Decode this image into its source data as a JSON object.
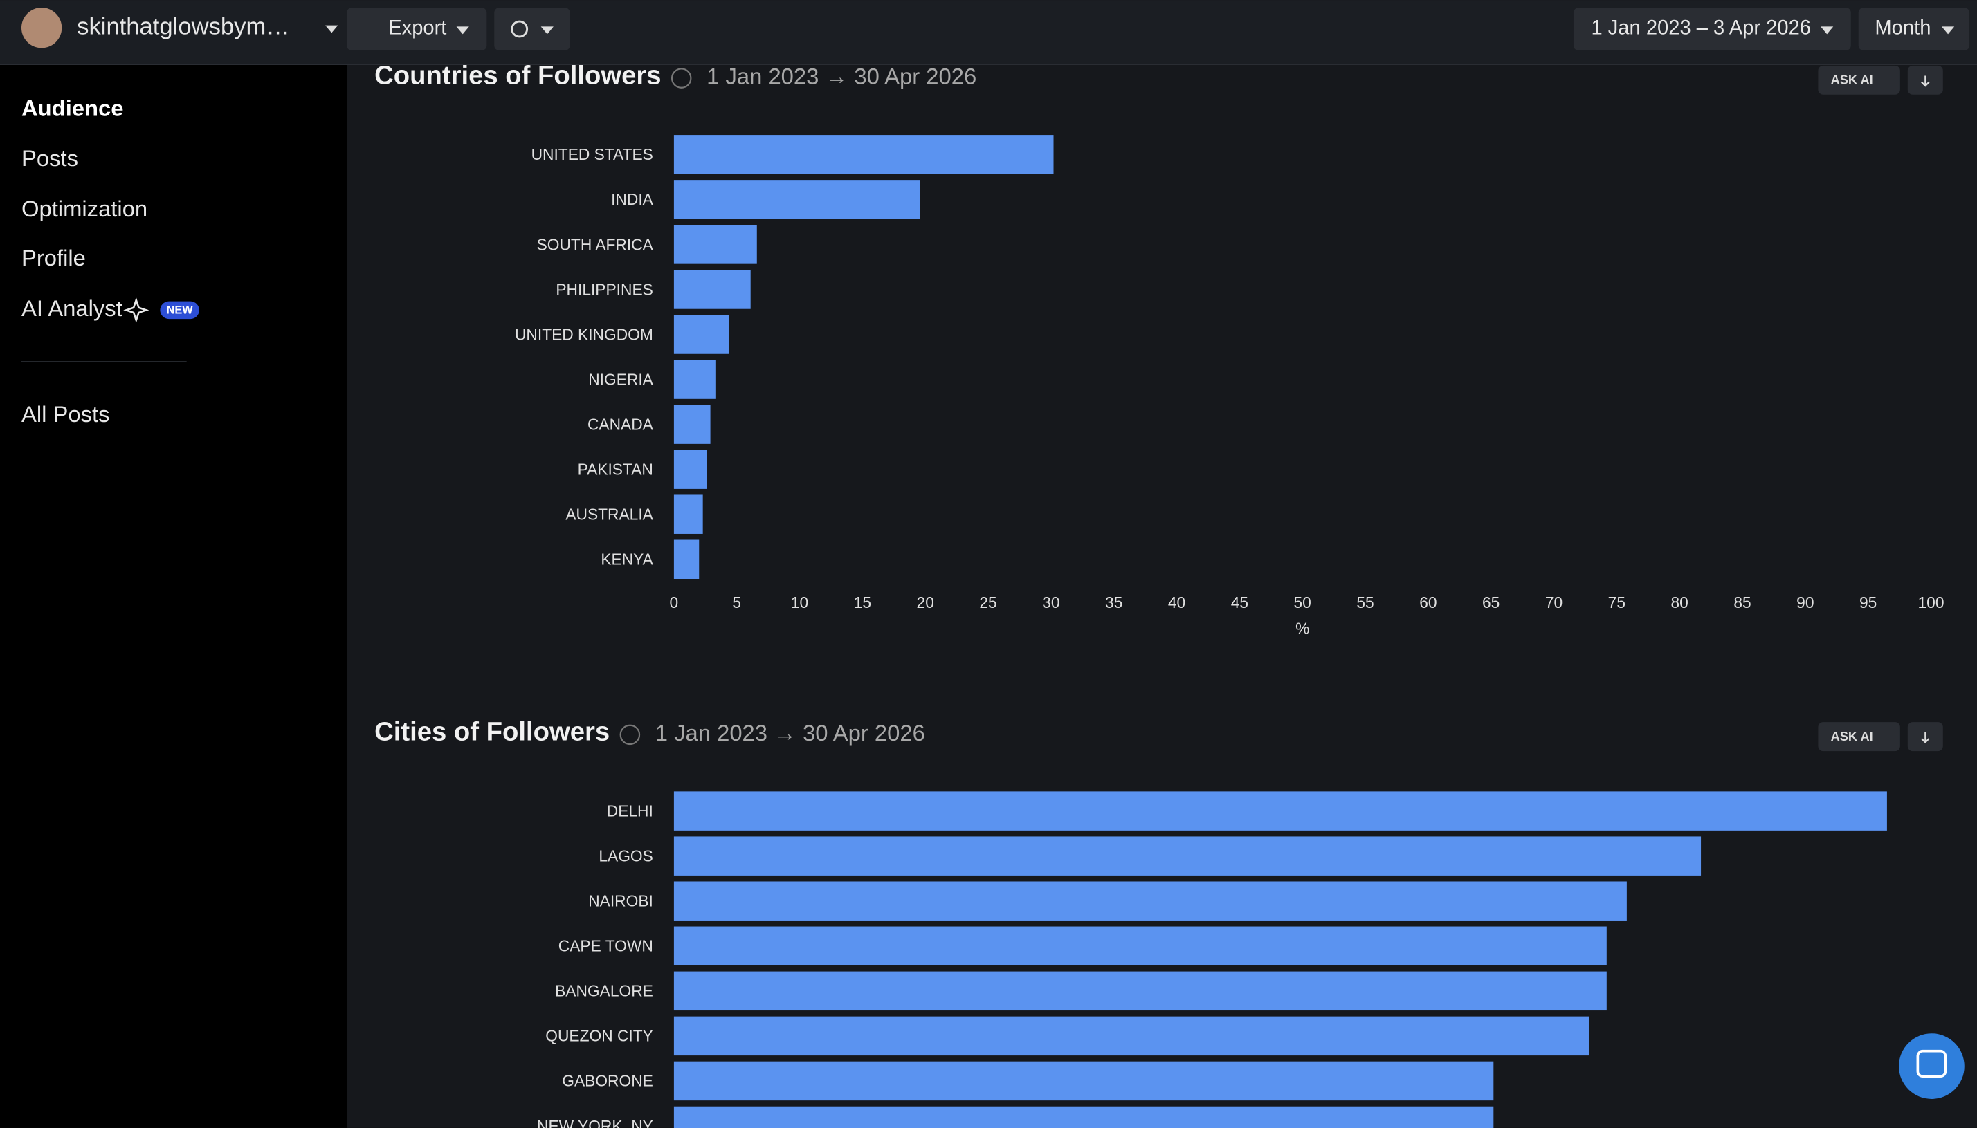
{
  "header": {
    "username": "skinthatglowsbym…",
    "export": "Export",
    "date_range": "1 Jan 2023 – 3 Apr 2026",
    "period": "Month"
  },
  "sidebar": {
    "items": [
      "Audience",
      "Posts",
      "Optimization",
      "Profile",
      "AI Analyst"
    ],
    "badge": "NEW",
    "all_posts": "All Posts"
  },
  "ask_ai": "ASK AI",
  "chart_data": [
    {
      "type": "hbar",
      "title": "Countries of Followers",
      "subtitle": "1 Jan 2023 → 30 Apr 2026",
      "color": "#5b93f0",
      "categories": [
        "UNITED STATES",
        "INDIA",
        "SOUTH AFRICA",
        "PHILIPPINES",
        "UNITED KINGDOM",
        "NIGERIA",
        "CANADA",
        "PAKISTAN",
        "AUSTRALIA",
        "KENYA"
      ],
      "values": [
        30.2,
        19.6,
        6.6,
        6.1,
        4.4,
        3.3,
        2.9,
        2.6,
        2.3,
        2.0
      ],
      "xlim": [
        0,
        100
      ],
      "xticks": [
        0,
        5,
        10,
        15,
        20,
        25,
        30,
        35,
        40,
        45,
        50,
        55,
        60,
        65,
        70,
        75,
        80,
        85,
        90,
        95,
        100
      ],
      "xlabel": "%"
    },
    {
      "type": "hbar",
      "title": "Cities of Followers",
      "subtitle": "1 Jan 2023 → 30 Apr 2026",
      "color": "#5b93f0",
      "categories": [
        "DELHI",
        "LAGOS",
        "NAIROBI",
        "CAPE TOWN",
        "BANGALORE",
        "QUEZON CITY",
        "GABORONE",
        "NEW YORK, NY"
      ],
      "values": [
        96.5,
        81.7,
        75.8,
        74.2,
        74.2,
        72.8,
        65.2,
        65.2
      ],
      "xlim": [
        0,
        100
      ]
    }
  ]
}
